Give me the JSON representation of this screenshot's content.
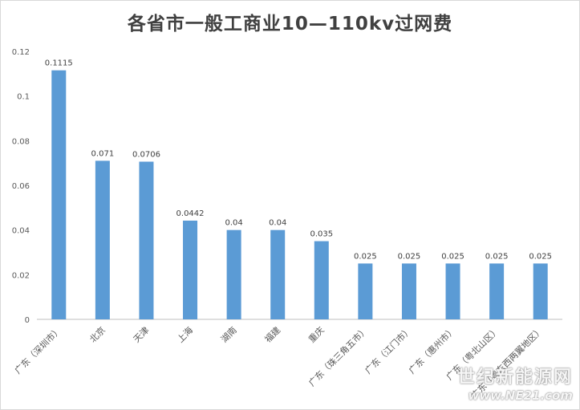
{
  "chart_data": {
    "type": "bar",
    "title": "各省市一般工商业10—110kv过网费",
    "categories": [
      "广东（深圳市）",
      "北京",
      "天津",
      "上海",
      "湖南",
      "福建",
      "重庆",
      "广东（珠三角五市）",
      "广东（江门市）",
      "广东（惠州市）",
      "广东（粤北山区）",
      "广东（粤东西两翼地区）"
    ],
    "values": [
      0.1115,
      0.071,
      0.0706,
      0.0442,
      0.04,
      0.04,
      0.035,
      0.025,
      0.025,
      0.025,
      0.025,
      0.025
    ],
    "data_labels": [
      "0.1115",
      "0.071",
      "0.0706",
      "0.0442",
      "0.04",
      "0.04",
      "0.035",
      "0.025",
      "0.025",
      "0.025",
      "0.025",
      "0.025"
    ],
    "y_ticks": [
      "0",
      "0.02",
      "0.04",
      "0.06",
      "0.08",
      "0.1",
      "0.12"
    ],
    "ylim": [
      0,
      0.12
    ],
    "grid": false,
    "legend": "none",
    "bar_color": "#5b9bd5"
  },
  "watermark": {
    "cn": "世纪新能源网",
    "en": "www.NE21.com"
  }
}
